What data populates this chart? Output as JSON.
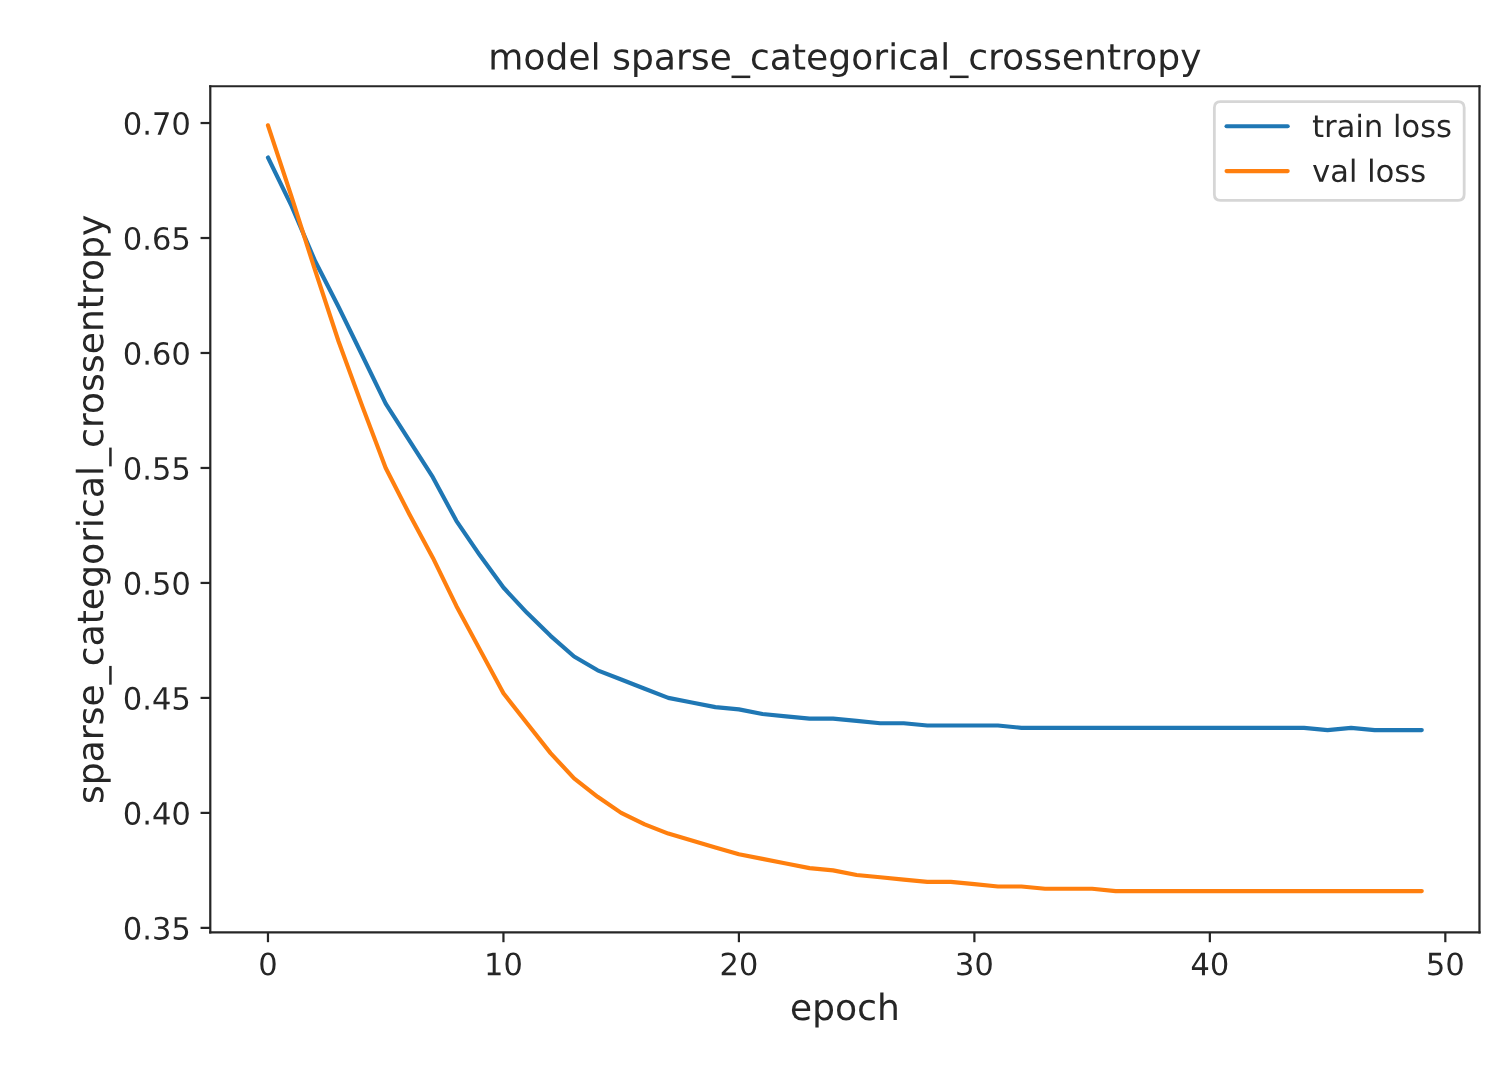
{
  "chart_data": {
    "type": "line",
    "title": "model sparse_categorical_crossentropy",
    "xlabel": "epoch",
    "ylabel": "sparse_categorical_crossentropy",
    "x": [
      0,
      1,
      2,
      3,
      4,
      5,
      6,
      7,
      8,
      9,
      10,
      11,
      12,
      13,
      14,
      15,
      16,
      17,
      18,
      19,
      20,
      21,
      22,
      23,
      24,
      25,
      26,
      27,
      28,
      29,
      30,
      31,
      32,
      33,
      34,
      35,
      36,
      37,
      38,
      39,
      40,
      41,
      42,
      43,
      44,
      45,
      46,
      47,
      48,
      49
    ],
    "series": [
      {
        "name": "train loss",
        "color": "#1f77b4",
        "values": [
          0.685,
          0.664,
          0.64,
          0.62,
          0.599,
          0.578,
          0.562,
          0.546,
          0.527,
          0.512,
          0.498,
          0.487,
          0.477,
          0.468,
          0.462,
          0.458,
          0.454,
          0.45,
          0.448,
          0.446,
          0.445,
          0.443,
          0.442,
          0.441,
          0.441,
          0.44,
          0.439,
          0.439,
          0.438,
          0.438,
          0.438,
          0.438,
          0.437,
          0.437,
          0.437,
          0.437,
          0.437,
          0.437,
          0.437,
          0.437,
          0.437,
          0.437,
          0.437,
          0.437,
          0.437,
          0.436,
          0.437,
          0.436,
          0.436,
          0.436
        ]
      },
      {
        "name": "val loss",
        "color": "#ff7f0e",
        "values": [
          0.699,
          0.668,
          0.636,
          0.605,
          0.577,
          0.55,
          0.53,
          0.511,
          0.49,
          0.471,
          0.452,
          0.439,
          0.426,
          0.415,
          0.407,
          0.4,
          0.395,
          0.391,
          0.388,
          0.385,
          0.382,
          0.38,
          0.378,
          0.376,
          0.375,
          0.373,
          0.372,
          0.371,
          0.37,
          0.37,
          0.369,
          0.368,
          0.368,
          0.367,
          0.367,
          0.367,
          0.366,
          0.366,
          0.366,
          0.366,
          0.366,
          0.366,
          0.366,
          0.366,
          0.366,
          0.366,
          0.366,
          0.366,
          0.366,
          0.366
        ]
      }
    ],
    "xlim": [
      -2.45,
      51.45
    ],
    "xticks": [
      0,
      10,
      20,
      30,
      40,
      50
    ],
    "ylim": [
      0.348,
      0.716
    ],
    "yticks": [
      {
        "value": 0.35,
        "label": "0.35"
      },
      {
        "value": 0.4,
        "label": "0.40"
      },
      {
        "value": 0.45,
        "label": "0.45"
      },
      {
        "value": 0.5,
        "label": "0.50"
      },
      {
        "value": 0.55,
        "label": "0.55"
      },
      {
        "value": 0.6,
        "label": "0.60"
      },
      {
        "value": 0.65,
        "label": "0.65"
      },
      {
        "value": 0.7,
        "label": "0.70"
      }
    ],
    "legend": "top right",
    "grid": false
  }
}
